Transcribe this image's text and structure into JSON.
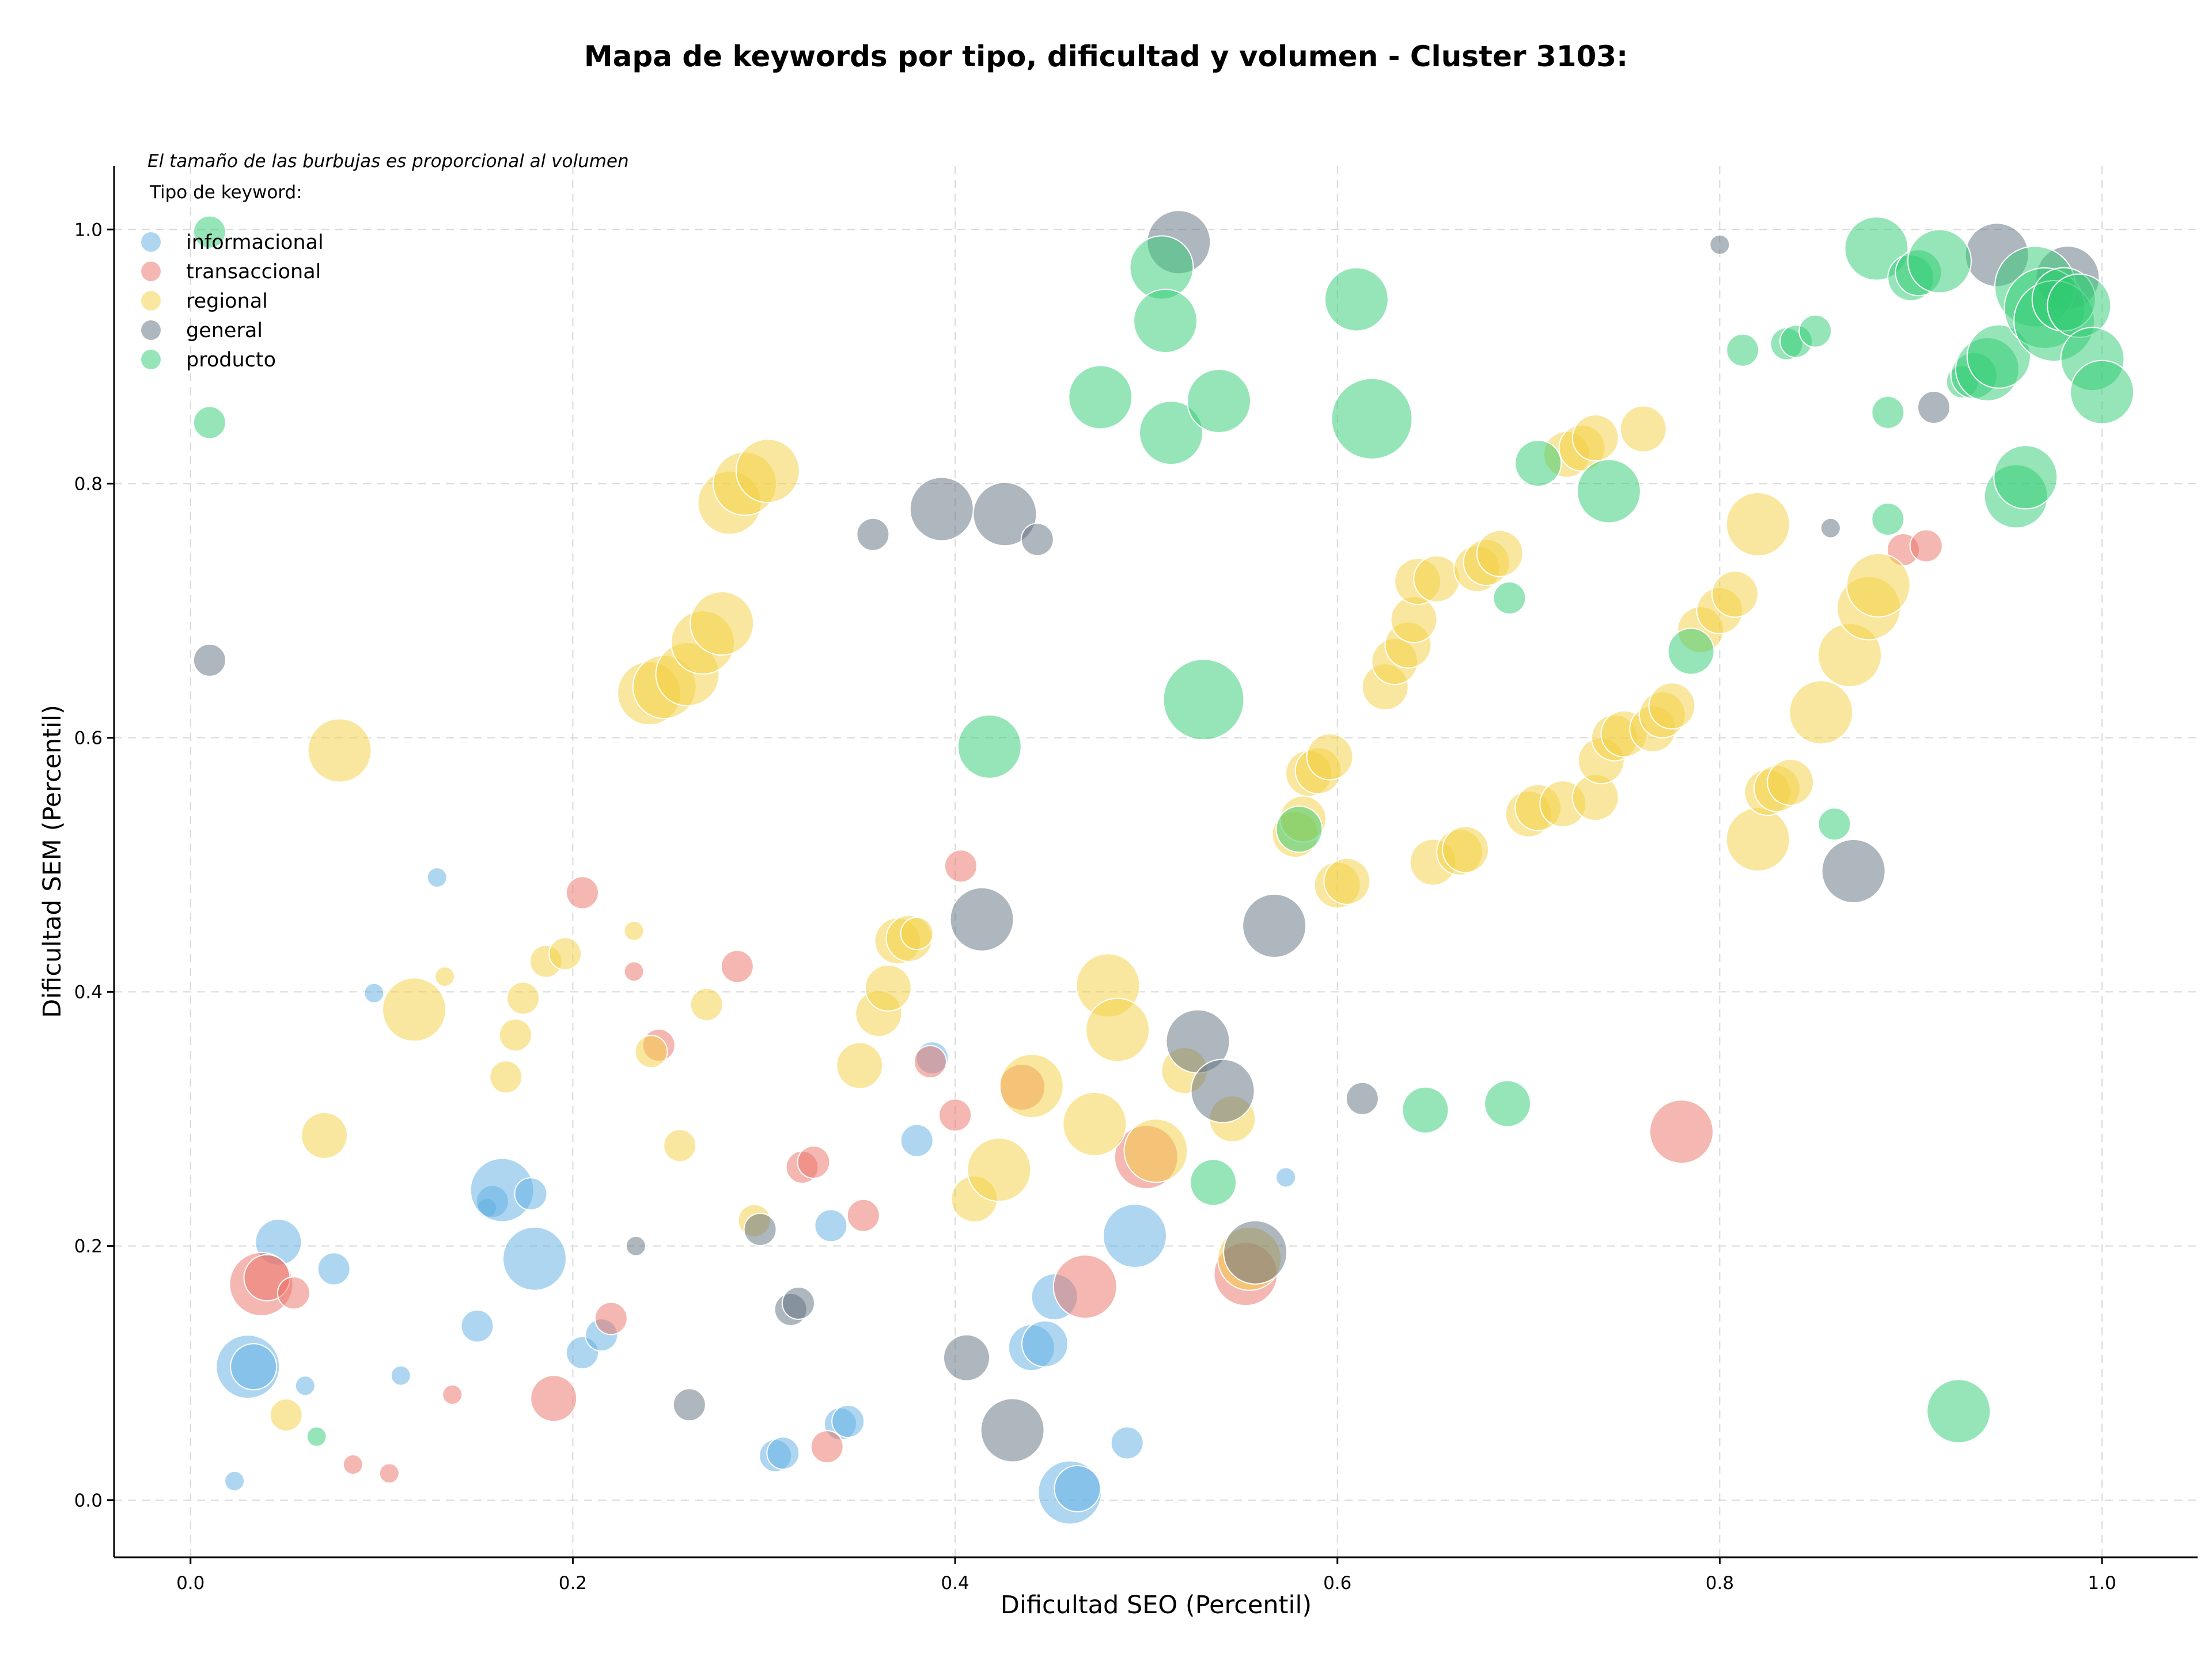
{
  "chart_data": {
    "type": "scatter",
    "title": "Mapa de keywords por tipo, dificultad y volumen - Cluster 3103:",
    "xlabel": "Dificultad SEO (Percentil)",
    "ylabel": "Dificultad SEM (Percentil)",
    "xlim": [
      -0.04,
      1.05
    ],
    "ylim": [
      -0.045,
      1.05
    ],
    "xticks": [
      0.0,
      0.2,
      0.4,
      0.6,
      0.8,
      1.0
    ],
    "xtick_labels": [
      "0.0",
      "0.2",
      "0.4",
      "0.6",
      "0.8",
      "1.0"
    ],
    "yticks": [
      0.0,
      0.2,
      0.4,
      0.6,
      0.8,
      1.0
    ],
    "ytick_labels": [
      "0.0",
      "0.2",
      "0.4",
      "0.6",
      "0.8",
      "1.0"
    ],
    "grid": true,
    "note": "El tamaño de las burbujas es proporcional al volumen",
    "legend_title": "Tipo de keyword:",
    "legend_position": "top-left",
    "series": [
      {
        "name": "informacional",
        "color": "#5dade2",
        "points": [
          [
            0.03,
            0.105,
            3
          ],
          [
            0.033,
            0.105,
            2
          ],
          [
            0.046,
            0.203,
            2
          ],
          [
            0.075,
            0.182,
            1
          ],
          [
            0.06,
            0.09,
            0
          ],
          [
            0.023,
            0.015,
            0
          ],
          [
            0.096,
            0.399,
            0
          ],
          [
            0.129,
            0.49,
            0
          ],
          [
            0.11,
            0.098,
            0
          ],
          [
            0.15,
            0.137,
            1
          ],
          [
            0.155,
            0.23,
            0
          ],
          [
            0.158,
            0.235,
            1
          ],
          [
            0.163,
            0.244,
            3
          ],
          [
            0.18,
            0.19,
            3
          ],
          [
            0.178,
            0.241,
            1
          ],
          [
            0.205,
            0.116,
            1
          ],
          [
            0.215,
            0.13,
            1
          ],
          [
            0.306,
            0.035,
            1
          ],
          [
            0.31,
            0.037,
            1
          ],
          [
            0.335,
            0.216,
            1
          ],
          [
            0.34,
            0.06,
            1
          ],
          [
            0.344,
            0.062,
            1
          ],
          [
            0.38,
            0.283,
            1
          ],
          [
            0.388,
            0.348,
            1
          ],
          [
            0.44,
            0.12,
            2
          ],
          [
            0.447,
            0.123,
            2
          ],
          [
            0.452,
            0.16,
            2
          ],
          [
            0.46,
            0.006,
            3
          ],
          [
            0.464,
            0.009,
            2
          ],
          [
            0.49,
            0.045,
            1
          ],
          [
            0.494,
            0.208,
            3
          ],
          [
            0.573,
            0.254,
            0
          ]
        ]
      },
      {
        "name": "transaccional",
        "color": "#ec7063",
        "points": [
          [
            0.037,
            0.17,
            3
          ],
          [
            0.04,
            0.175,
            2
          ],
          [
            0.054,
            0.163,
            1
          ],
          [
            0.085,
            0.028,
            0
          ],
          [
            0.104,
            0.021,
            0
          ],
          [
            0.137,
            0.083,
            0
          ],
          [
            0.19,
            0.08,
            2
          ],
          [
            0.205,
            0.478,
            1
          ],
          [
            0.22,
            0.143,
            1
          ],
          [
            0.232,
            0.416,
            0
          ],
          [
            0.245,
            0.358,
            1
          ],
          [
            0.286,
            0.42,
            1
          ],
          [
            0.32,
            0.262,
            1
          ],
          [
            0.326,
            0.266,
            1
          ],
          [
            0.333,
            0.042,
            1
          ],
          [
            0.352,
            0.224,
            1
          ],
          [
            0.387,
            0.345,
            1
          ],
          [
            0.4,
            0.303,
            1
          ],
          [
            0.403,
            0.499,
            1
          ],
          [
            0.435,
            0.325,
            2
          ],
          [
            0.468,
            0.168,
            3
          ],
          [
            0.5,
            0.27,
            3
          ],
          [
            0.552,
            0.178,
            3
          ],
          [
            0.78,
            0.29,
            3
          ],
          [
            0.896,
            0.748,
            1
          ],
          [
            0.908,
            0.751,
            1
          ]
        ]
      },
      {
        "name": "regional",
        "color": "#f4d03f",
        "points": [
          [
            0.05,
            0.067,
            1
          ],
          [
            0.07,
            0.287,
            2
          ],
          [
            0.078,
            0.59,
            3
          ],
          [
            0.117,
            0.386,
            3
          ],
          [
            0.133,
            0.412,
            0
          ],
          [
            0.165,
            0.333,
            1
          ],
          [
            0.17,
            0.366,
            1
          ],
          [
            0.174,
            0.395,
            1
          ],
          [
            0.186,
            0.424,
            1
          ],
          [
            0.196,
            0.43,
            1
          ],
          [
            0.232,
            0.448,
            0
          ],
          [
            0.241,
            0.353,
            1
          ],
          [
            0.256,
            0.279,
            1
          ],
          [
            0.27,
            0.39,
            1
          ],
          [
            0.24,
            0.635,
            3
          ],
          [
            0.248,
            0.64,
            3
          ],
          [
            0.26,
            0.65,
            3
          ],
          [
            0.268,
            0.675,
            3
          ],
          [
            0.278,
            0.69,
            3
          ],
          [
            0.282,
            0.785,
            3
          ],
          [
            0.29,
            0.8,
            3
          ],
          [
            0.302,
            0.81,
            3
          ],
          [
            0.295,
            0.22,
            1
          ],
          [
            0.35,
            0.342,
            2
          ],
          [
            0.36,
            0.383,
            2
          ],
          [
            0.365,
            0.403,
            2
          ],
          [
            0.37,
            0.44,
            2
          ],
          [
            0.376,
            0.442,
            2
          ],
          [
            0.38,
            0.446,
            1
          ],
          [
            0.41,
            0.237,
            2
          ],
          [
            0.423,
            0.26,
            3
          ],
          [
            0.44,
            0.326,
            3
          ],
          [
            0.473,
            0.296,
            3
          ],
          [
            0.48,
            0.405,
            3
          ],
          [
            0.485,
            0.37,
            3
          ],
          [
            0.505,
            0.275,
            3
          ],
          [
            0.52,
            0.338,
            2
          ],
          [
            0.545,
            0.3,
            2
          ],
          [
            0.554,
            0.19,
            3
          ],
          [
            0.578,
            0.524,
            2
          ],
          [
            0.582,
            0.536,
            2
          ],
          [
            0.585,
            0.572,
            2
          ],
          [
            0.59,
            0.574,
            2
          ],
          [
            0.596,
            0.585,
            2
          ],
          [
            0.6,
            0.484,
            2
          ],
          [
            0.605,
            0.487,
            2
          ],
          [
            0.625,
            0.64,
            2
          ],
          [
            0.63,
            0.66,
            2
          ],
          [
            0.637,
            0.673,
            2
          ],
          [
            0.64,
            0.693,
            2
          ],
          [
            0.642,
            0.723,
            2
          ],
          [
            0.652,
            0.725,
            2
          ],
          [
            0.65,
            0.502,
            2
          ],
          [
            0.664,
            0.51,
            2
          ],
          [
            0.667,
            0.512,
            2
          ],
          [
            0.673,
            0.733,
            2
          ],
          [
            0.678,
            0.738,
            2
          ],
          [
            0.685,
            0.745,
            2
          ],
          [
            0.7,
            0.54,
            2
          ],
          [
            0.705,
            0.545,
            2
          ],
          [
            0.718,
            0.548,
            2
          ],
          [
            0.735,
            0.553,
            2
          ],
          [
            0.738,
            0.582,
            2
          ],
          [
            0.745,
            0.6,
            2
          ],
          [
            0.75,
            0.603,
            2
          ],
          [
            0.765,
            0.607,
            2
          ],
          [
            0.77,
            0.618,
            2
          ],
          [
            0.775,
            0.625,
            2
          ],
          [
            0.72,
            0.823,
            2
          ],
          [
            0.728,
            0.828,
            2
          ],
          [
            0.735,
            0.836,
            2
          ],
          [
            0.76,
            0.843,
            2
          ],
          [
            0.79,
            0.685,
            2
          ],
          [
            0.8,
            0.7,
            2
          ],
          [
            0.808,
            0.713,
            2
          ],
          [
            0.82,
            0.52,
            3
          ],
          [
            0.825,
            0.557,
            2
          ],
          [
            0.83,
            0.56,
            2
          ],
          [
            0.837,
            0.565,
            2
          ],
          [
            0.82,
            0.768,
            3
          ],
          [
            0.853,
            0.62,
            3
          ],
          [
            0.868,
            0.665,
            3
          ],
          [
            0.878,
            0.702,
            3
          ],
          [
            0.883,
            0.72,
            3
          ]
        ]
      },
      {
        "name": "general",
        "color": "#5d6d7e",
        "points": [
          [
            0.01,
            0.661,
            1
          ],
          [
            0.233,
            0.2,
            0
          ],
          [
            0.261,
            0.075,
            1
          ],
          [
            0.298,
            0.213,
            1
          ],
          [
            0.314,
            0.15,
            1
          ],
          [
            0.318,
            0.155,
            1
          ],
          [
            0.357,
            0.76,
            1
          ],
          [
            0.393,
            0.78,
            3
          ],
          [
            0.406,
            0.112,
            2
          ],
          [
            0.414,
            0.457,
            3
          ],
          [
            0.426,
            0.776,
            3
          ],
          [
            0.43,
            0.055,
            3
          ],
          [
            0.443,
            0.756,
            1
          ],
          [
            0.517,
            0.99,
            3
          ],
          [
            0.527,
            0.361,
            3
          ],
          [
            0.54,
            0.322,
            3
          ],
          [
            0.557,
            0.195,
            3
          ],
          [
            0.567,
            0.452,
            3
          ],
          [
            0.613,
            0.316,
            1
          ],
          [
            0.8,
            0.988,
            0
          ],
          [
            0.858,
            0.765,
            0
          ],
          [
            0.87,
            0.495,
            3
          ],
          [
            0.912,
            0.86,
            1
          ],
          [
            0.945,
            0.98,
            3
          ],
          [
            0.982,
            0.962,
            3
          ]
        ]
      },
      {
        "name": "producto",
        "color": "#2ecc71",
        "points": [
          [
            0.01,
            0.998,
            1
          ],
          [
            0.01,
            0.848,
            1
          ],
          [
            0.066,
            0.05,
            0
          ],
          [
            0.418,
            0.593,
            3
          ],
          [
            0.476,
            0.868,
            3
          ],
          [
            0.508,
            0.97,
            3
          ],
          [
            0.51,
            0.928,
            3
          ],
          [
            0.513,
            0.84,
            3
          ],
          [
            0.53,
            0.63,
            4
          ],
          [
            0.538,
            0.865,
            3
          ],
          [
            0.535,
            0.25,
            2
          ],
          [
            0.58,
            0.528,
            2
          ],
          [
            0.61,
            0.945,
            3
          ],
          [
            0.618,
            0.851,
            4
          ],
          [
            0.646,
            0.307,
            2
          ],
          [
            0.689,
            0.312,
            2
          ],
          [
            0.69,
            0.71,
            1
          ],
          [
            0.705,
            0.816,
            2
          ],
          [
            0.742,
            0.794,
            3
          ],
          [
            0.785,
            0.668,
            2
          ],
          [
            0.812,
            0.905,
            1
          ],
          [
            0.835,
            0.91,
            1
          ],
          [
            0.84,
            0.912,
            1
          ],
          [
            0.85,
            0.92,
            1
          ],
          [
            0.86,
            0.532,
            1
          ],
          [
            0.882,
            0.985,
            3
          ],
          [
            0.888,
            0.856,
            1
          ],
          [
            0.888,
            0.772,
            1
          ],
          [
            0.9,
            0.962,
            2
          ],
          [
            0.904,
            0.966,
            2
          ],
          [
            0.915,
            0.975,
            3
          ],
          [
            0.925,
            0.07,
            3
          ],
          [
            0.927,
            0.88,
            1
          ],
          [
            0.933,
            0.885,
            2
          ],
          [
            0.94,
            0.89,
            3
          ],
          [
            0.946,
            0.9,
            3
          ],
          [
            0.955,
            0.79,
            3
          ],
          [
            0.96,
            0.805,
            3
          ],
          [
            0.965,
            0.955,
            4
          ],
          [
            0.97,
            0.938,
            4
          ],
          [
            0.975,
            0.928,
            4
          ],
          [
            0.98,
            0.945,
            3
          ],
          [
            0.988,
            0.94,
            3
          ],
          [
            0.995,
            0.898,
            3
          ],
          [
            1.0,
            0.872,
            3
          ]
        ]
      }
    ]
  }
}
